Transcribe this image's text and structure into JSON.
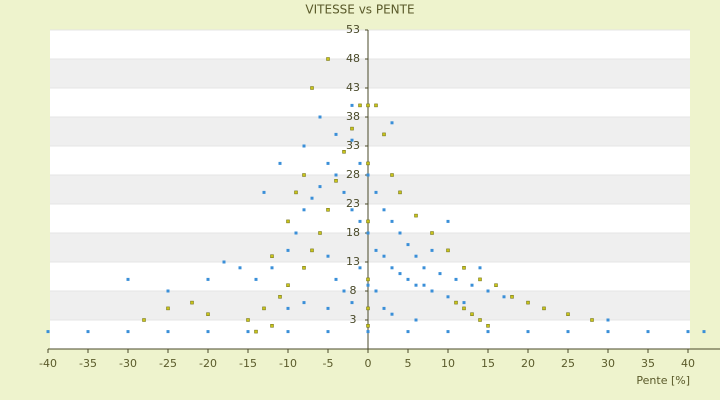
{
  "chart_data": {
    "type": "scatter",
    "title": "VITESSE vs PENTE",
    "x_label": "Pente [%]",
    "xlim": [
      -40,
      44
    ],
    "xticks": [
      -40,
      -35,
      -30,
      -25,
      -20,
      -15,
      -10,
      -5,
      0,
      5,
      10,
      15,
      20,
      25,
      30,
      35,
      40
    ],
    "ylim": [
      -2,
      53
    ],
    "yticks": [
      3,
      8,
      13,
      18,
      23,
      28,
      33,
      38,
      43,
      48,
      53
    ],
    "grid": true,
    "series": [
      {
        "color": "#3a8fd8",
        "x": [
          -5,
          -4,
          -3,
          -2,
          -1,
          0,
          1,
          2,
          3,
          4,
          5,
          6,
          7,
          8,
          10,
          12,
          -6,
          -7,
          -8,
          -9,
          -10,
          -12,
          -14,
          -16,
          -18,
          -20,
          -25,
          -30,
          -3,
          -4,
          -2,
          -1,
          0,
          1,
          2,
          3,
          4,
          5,
          6,
          7,
          9,
          11,
          13,
          15,
          17,
          20,
          22,
          -6,
          -5,
          -4,
          -3,
          -2,
          -1,
          0,
          1,
          2,
          3,
          -8,
          -10,
          -40,
          -35,
          -30,
          -25,
          -20,
          -15,
          -10,
          -5,
          0,
          5,
          10,
          15,
          20,
          25,
          30,
          35,
          40,
          42,
          -6,
          -2,
          3,
          -11,
          -13,
          -8,
          4,
          8,
          10,
          14,
          25,
          30,
          -5,
          6
        ],
        "values": [
          30,
          28,
          25,
          22,
          20,
          18,
          15,
          14,
          12,
          11,
          10,
          9,
          9,
          8,
          7,
          6,
          26,
          24,
          22,
          18,
          15,
          12,
          10,
          12,
          13,
          10,
          8,
          10,
          32,
          35,
          34,
          30,
          28,
          25,
          22,
          20,
          18,
          16,
          14,
          12,
          11,
          10,
          9,
          8,
          7,
          6,
          5,
          18,
          14,
          10,
          8,
          6,
          12,
          9,
          8,
          5,
          4,
          6,
          5,
          1,
          1,
          1,
          1,
          1,
          1,
          1,
          1,
          1,
          1,
          1,
          1,
          1,
          1,
          1,
          1,
          1,
          1,
          38,
          40,
          37,
          30,
          25,
          33,
          25,
          15,
          20,
          12,
          4,
          3,
          5,
          3
        ]
      },
      {
        "color": "#c9c41a",
        "x": [
          -15,
          -13,
          -11,
          -10,
          -8,
          -7,
          -6,
          -5,
          -4,
          -3,
          -2,
          -1,
          -20,
          -22,
          -25,
          -28,
          -12,
          -10,
          -9,
          -8,
          -7,
          -5,
          0,
          0,
          0,
          0,
          0,
          1,
          2,
          3,
          4,
          6,
          8,
          10,
          12,
          14,
          16,
          18,
          20,
          22,
          25,
          28,
          12,
          13,
          14,
          11,
          15,
          -14,
          -12,
          0
        ],
        "values": [
          3,
          5,
          7,
          9,
          12,
          15,
          18,
          22,
          27,
          32,
          36,
          40,
          4,
          6,
          5,
          3,
          14,
          20,
          25,
          28,
          43,
          48,
          5,
          10,
          20,
          30,
          40,
          40,
          35,
          28,
          25,
          21,
          18,
          15,
          12,
          10,
          9,
          7,
          6,
          5,
          4,
          3,
          5,
          4,
          3,
          6,
          2,
          1,
          2,
          2
        ]
      }
    ]
  }
}
